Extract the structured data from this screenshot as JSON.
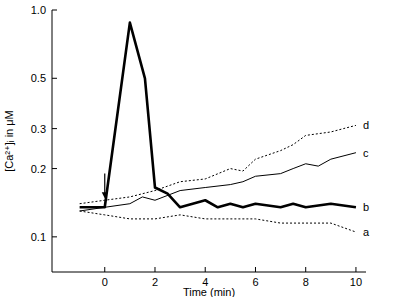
{
  "chart_data": {
    "type": "line",
    "xlabel": "Time (min)",
    "ylabel": "[Ca²⁺]ᵢ in μM",
    "log": "y",
    "xlim": [
      -2.1,
      10.4
    ],
    "xticks": [
      0,
      2,
      4,
      6,
      8,
      10
    ],
    "ylim": [
      0.07,
      1.0
    ],
    "yticks": [
      0.1,
      0.2,
      0.3,
      0.5,
      {
        "value": 1.0,
        "label": "1.0"
      }
    ],
    "grid": false,
    "annotations": [
      {
        "type": "arrow",
        "x": 0,
        "y_from": 0.19,
        "y_to": 0.148
      }
    ],
    "series": [
      {
        "name": "a",
        "color": "#000000",
        "line_style": "dotted",
        "x": [
          -1,
          0,
          1,
          2,
          3,
          4,
          5,
          6,
          7,
          8,
          9,
          10
        ],
        "values": [
          0.13,
          0.125,
          0.12,
          0.12,
          0.125,
          0.12,
          0.12,
          0.12,
          0.115,
          0.115,
          0.115,
          0.105
        ]
      },
      {
        "name": "b",
        "color": "#000000",
        "line_style": "thick",
        "x": [
          -1,
          0,
          1,
          1.6,
          2,
          2.5,
          3,
          3.5,
          4,
          4.5,
          5,
          5.5,
          6,
          7,
          7.5,
          8,
          9,
          10
        ],
        "values": [
          0.135,
          0.135,
          0.88,
          0.5,
          0.165,
          0.155,
          0.135,
          0.14,
          0.145,
          0.135,
          0.14,
          0.135,
          0.14,
          0.135,
          0.14,
          0.135,
          0.14,
          0.135
        ]
      },
      {
        "name": "c",
        "color": "#000000",
        "line_style": "solid",
        "x": [
          -1,
          0,
          1,
          1.5,
          2,
          3,
          4,
          5,
          5.5,
          6,
          7,
          7.5,
          8,
          8.5,
          9,
          10
        ],
        "values": [
          0.13,
          0.135,
          0.14,
          0.15,
          0.145,
          0.16,
          0.165,
          0.17,
          0.175,
          0.185,
          0.19,
          0.2,
          0.21,
          0.205,
          0.22,
          0.235
        ]
      },
      {
        "name": "d",
        "color": "#000000",
        "line_style": "dotted",
        "x": [
          -1,
          0,
          1,
          2,
          3,
          4,
          5,
          5.5,
          6,
          7,
          7.5,
          8,
          9,
          9.5,
          10
        ],
        "values": [
          0.14,
          0.145,
          0.15,
          0.16,
          0.175,
          0.18,
          0.2,
          0.195,
          0.22,
          0.24,
          0.255,
          0.28,
          0.29,
          0.3,
          0.31
        ]
      }
    ]
  }
}
